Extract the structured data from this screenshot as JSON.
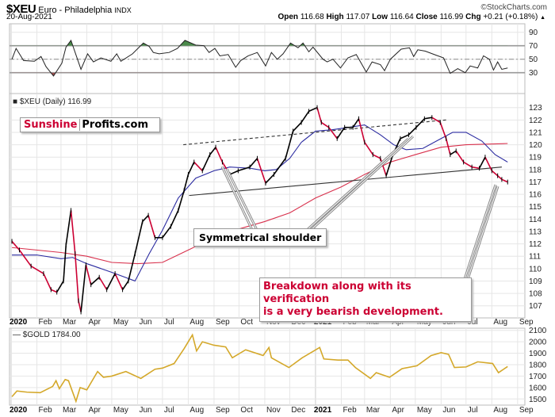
{
  "header": {
    "symbol": "$XEU",
    "name": "Euro - Philadelphia",
    "exchange": "INDX",
    "date": "20-Aug-2021",
    "credit": "©StockCharts.com",
    "open_label": "Open",
    "open": "116.68",
    "high_label": "High",
    "high": "117.07",
    "low_label": "Low",
    "low": "116.64",
    "close_label": "Close",
    "close": "116.99",
    "chg_label": "Chg",
    "chg": "+0.21 (+0.18%)",
    "chg_icon": "triangle-up-icon"
  },
  "branding": {
    "part1": "Sunshine",
    "part2": "Profits.com"
  },
  "annotations": {
    "shoulder": "Symmetrical shoulder",
    "breakdown_line1": "Breakdown along with its verification",
    "breakdown_line2": "is a very bearish development."
  },
  "colors": {
    "up": "#000000",
    "down": "#cc0033",
    "ma50": "#2a2aa0",
    "ma200": "#d8304c",
    "gold": "#d4a82a",
    "rsi_over": "#4a8a4a",
    "rsi_under": "#a05050",
    "accent": "#cc0033"
  },
  "chart_data": [
    {
      "type": "line",
      "panel": "rsi",
      "ylim": [
        10,
        100
      ],
      "yticks": [
        30,
        50,
        70,
        90
      ],
      "levels": [
        30,
        50,
        70
      ],
      "grid": true,
      "points": [
        [
          "2020-01-02",
          50
        ],
        [
          "2020-01-07",
          66
        ],
        [
          "2020-01-16",
          48
        ],
        [
          "2020-01-29",
          47
        ],
        [
          "2020-02-06",
          54
        ],
        [
          "2020-02-12",
          39
        ],
        [
          "2020-02-21",
          25
        ],
        [
          "2020-03-02",
          44
        ],
        [
          "2020-03-07",
          68
        ],
        [
          "2020-03-13",
          78
        ],
        [
          "2020-03-25",
          35
        ],
        [
          "2020-04-02",
          58
        ],
        [
          "2020-04-09",
          46
        ],
        [
          "2020-04-18",
          52
        ],
        [
          "2020-04-30",
          47
        ],
        [
          "2020-05-07",
          58
        ],
        [
          "2020-05-12",
          47
        ],
        [
          "2020-05-26",
          58
        ],
        [
          "2020-06-08",
          74
        ],
        [
          "2020-06-15",
          69
        ],
        [
          "2020-06-20",
          60
        ],
        [
          "2020-06-27",
          58
        ],
        [
          "2020-07-09",
          60
        ],
        [
          "2020-07-19",
          66
        ],
        [
          "2020-07-28",
          78
        ],
        [
          "2020-08-10",
          71
        ],
        [
          "2020-08-20",
          70
        ],
        [
          "2020-08-26",
          60
        ],
        [
          "2020-09-02",
          66
        ],
        [
          "2020-09-08",
          55
        ],
        [
          "2020-09-18",
          57
        ],
        [
          "2020-09-27",
          38
        ],
        [
          "2020-10-03",
          48
        ],
        [
          "2020-10-12",
          55
        ],
        [
          "2020-10-23",
          60
        ],
        [
          "2020-11-02",
          40
        ],
        [
          "2020-11-09",
          60
        ],
        [
          "2020-11-16",
          50
        ],
        [
          "2020-11-23",
          58
        ],
        [
          "2020-12-02",
          74
        ],
        [
          "2020-12-11",
          67
        ],
        [
          "2020-12-17",
          74
        ],
        [
          "2020-12-24",
          61
        ],
        [
          "2020-12-29",
          68
        ],
        [
          "2021-01-10",
          50
        ],
        [
          "2021-01-15",
          46
        ],
        [
          "2021-01-22",
          50
        ],
        [
          "2021-01-31",
          37
        ],
        [
          "2021-02-09",
          52
        ],
        [
          "2021-02-19",
          57
        ],
        [
          "2021-03-03",
          31
        ],
        [
          "2021-03-10",
          46
        ],
        [
          "2021-03-20",
          42
        ],
        [
          "2021-03-25",
          33
        ],
        [
          "2021-04-01",
          50
        ],
        [
          "2021-04-14",
          65
        ],
        [
          "2021-04-24",
          67
        ],
        [
          "2021-04-29",
          54
        ],
        [
          "2021-05-04",
          64
        ],
        [
          "2021-05-13",
          62
        ],
        [
          "2021-05-26",
          56
        ],
        [
          "2021-06-04",
          52
        ],
        [
          "2021-06-12",
          29
        ],
        [
          "2021-06-21",
          36
        ],
        [
          "2021-06-30",
          30
        ],
        [
          "2021-07-06",
          40
        ],
        [
          "2021-07-15",
          37
        ],
        [
          "2021-07-22",
          55
        ],
        [
          "2021-07-29",
          50
        ],
        [
          "2021-08-03",
          34
        ],
        [
          "2021-08-08",
          46
        ],
        [
          "2021-08-13",
          35
        ],
        [
          "2021-08-20",
          37
        ]
      ]
    },
    {
      "type": "line",
      "panel": "price",
      "legend": "$XEU (Daily) 116.99",
      "ylim": [
        106,
        123.8
      ],
      "yticks": [
        107,
        108,
        109,
        110,
        111,
        112,
        113,
        114,
        115,
        116,
        117,
        118,
        119,
        120,
        121,
        122,
        123
      ],
      "grid": true,
      "x_tick_labels": [
        "2020",
        "Feb",
        "Mar",
        "Apr",
        "May",
        "Jun",
        "Jul",
        "Aug",
        "Sep",
        "Oct",
        "Nov",
        "Dec",
        "2021",
        "Feb",
        "Mar",
        "Apr",
        "May",
        "Jun",
        "Jul",
        "Aug",
        "Sep"
      ],
      "price": [
        [
          "2020-01-02",
          112.2
        ],
        [
          "2020-01-11",
          111.5
        ],
        [
          "2020-01-25",
          110.2
        ],
        [
          "2020-02-09",
          109.6
        ],
        [
          "2020-02-18",
          108.3
        ],
        [
          "2020-02-25",
          108.1
        ],
        [
          "2020-03-04",
          109.0
        ],
        [
          "2020-03-07",
          111.9
        ],
        [
          "2020-03-13",
          114.7
        ],
        [
          "2020-03-18",
          111.2
        ],
        [
          "2020-03-22",
          107.4
        ],
        [
          "2020-03-25",
          106.5
        ],
        [
          "2020-03-31",
          110.3
        ],
        [
          "2020-04-06",
          108.7
        ],
        [
          "2020-04-16",
          109.3
        ],
        [
          "2020-04-25",
          108.3
        ],
        [
          "2020-05-05",
          109.6
        ],
        [
          "2020-05-14",
          108.3
        ],
        [
          "2020-05-21",
          109.0
        ],
        [
          "2020-05-29",
          111.2
        ],
        [
          "2020-06-07",
          113.8
        ],
        [
          "2020-06-14",
          114.3
        ],
        [
          "2020-06-22",
          112.5
        ],
        [
          "2020-07-01",
          112.5
        ],
        [
          "2020-07-11",
          113.4
        ],
        [
          "2020-07-20",
          114.7
        ],
        [
          "2020-07-27",
          116.3
        ],
        [
          "2020-08-01",
          117.6
        ],
        [
          "2020-08-08",
          118.6
        ],
        [
          "2020-08-18",
          117.9
        ],
        [
          "2020-08-27",
          119.2
        ],
        [
          "2020-09-03",
          119.8
        ],
        [
          "2020-09-11",
          118.6
        ],
        [
          "2020-09-20",
          117.6
        ],
        [
          "2020-09-30",
          117.9
        ],
        [
          "2020-10-14",
          118.2
        ],
        [
          "2020-10-23",
          118.9
        ],
        [
          "2020-11-02",
          116.9
        ],
        [
          "2020-11-12",
          117.6
        ],
        [
          "2020-11-26",
          118.9
        ],
        [
          "2020-12-05",
          121.1
        ],
        [
          "2020-12-15",
          121.8
        ],
        [
          "2020-12-24",
          122.7
        ],
        [
          "2021-01-03",
          123.0
        ],
        [
          "2021-01-08",
          121.8
        ],
        [
          "2021-01-17",
          121.4
        ],
        [
          "2021-01-27",
          120.5
        ],
        [
          "2021-02-05",
          121.4
        ],
        [
          "2021-02-15",
          121.4
        ],
        [
          "2021-02-22",
          122.1
        ],
        [
          "2021-03-01",
          120.2
        ],
        [
          "2021-03-11",
          119.2
        ],
        [
          "2021-03-20",
          118.9
        ],
        [
          "2021-03-27",
          117.5
        ],
        [
          "2021-04-04",
          119.2
        ],
        [
          "2021-04-13",
          120.5
        ],
        [
          "2021-04-23",
          120.8
        ],
        [
          "2021-05-02",
          121.4
        ],
        [
          "2021-05-12",
          122.1
        ],
        [
          "2021-05-21",
          122.2
        ],
        [
          "2021-05-31",
          121.8
        ],
        [
          "2021-06-07",
          120.5
        ],
        [
          "2021-06-12",
          119.2
        ],
        [
          "2021-06-19",
          119.5
        ],
        [
          "2021-06-28",
          118.6
        ],
        [
          "2021-07-08",
          118.2
        ],
        [
          "2021-07-17",
          118.1
        ],
        [
          "2021-07-24",
          119.0
        ],
        [
          "2021-08-01",
          117.9
        ],
        [
          "2021-08-08",
          117.5
        ],
        [
          "2021-08-13",
          117.2
        ],
        [
          "2021-08-20",
          116.99
        ]
      ],
      "ma50": [
        [
          "2020-01-02",
          111.1
        ],
        [
          "2020-02-01",
          111.1
        ],
        [
          "2020-03-01",
          110.8
        ],
        [
          "2020-03-15",
          110.9
        ],
        [
          "2020-04-01",
          110.4
        ],
        [
          "2020-05-01",
          109.7
        ],
        [
          "2020-05-29",
          109.0
        ],
        [
          "2020-06-15",
          111.2
        ],
        [
          "2020-07-01",
          113.1
        ],
        [
          "2020-07-20",
          115.7
        ],
        [
          "2020-08-10",
          117.3
        ],
        [
          "2020-09-01",
          117.9
        ],
        [
          "2020-09-20",
          118.2
        ],
        [
          "2020-10-15",
          118.1
        ],
        [
          "2020-11-01",
          117.9
        ],
        [
          "2020-11-15",
          118.0
        ],
        [
          "2020-12-01",
          118.9
        ],
        [
          "2020-12-15",
          120.2
        ],
        [
          "2021-01-01",
          121.1
        ],
        [
          "2021-01-20",
          121.2
        ],
        [
          "2021-02-10",
          121.4
        ],
        [
          "2021-03-01",
          121.6
        ],
        [
          "2021-03-20",
          120.8
        ],
        [
          "2021-04-05",
          120.0
        ],
        [
          "2021-04-20",
          119.6
        ],
        [
          "2021-05-10",
          119.7
        ],
        [
          "2021-06-01",
          120.5
        ],
        [
          "2021-06-15",
          121.0
        ],
        [
          "2021-07-01",
          121.0
        ],
        [
          "2021-07-20",
          120.3
        ],
        [
          "2021-08-05",
          119.2
        ],
        [
          "2021-08-20",
          118.6
        ]
      ],
      "ma200": [
        [
          "2020-01-02",
          111.7
        ],
        [
          "2020-03-01",
          111.3
        ],
        [
          "2020-04-01",
          111.0
        ],
        [
          "2020-05-01",
          110.5
        ],
        [
          "2020-06-01",
          110.4
        ],
        [
          "2020-07-01",
          110.5
        ],
        [
          "2020-08-01",
          111.5
        ],
        [
          "2020-09-01",
          112.5
        ],
        [
          "2020-10-01",
          113.2
        ],
        [
          "2020-11-01",
          113.8
        ],
        [
          "2020-12-01",
          114.5
        ],
        [
          "2021-01-01",
          115.7
        ],
        [
          "2021-02-01",
          116.6
        ],
        [
          "2021-03-01",
          117.6
        ],
        [
          "2021-04-01",
          118.6
        ],
        [
          "2021-05-01",
          119.2
        ],
        [
          "2021-06-01",
          119.8
        ],
        [
          "2021-07-01",
          120.0
        ],
        [
          "2021-08-20",
          120.1
        ]
      ],
      "trendlines": [
        {
          "style": "dashed",
          "from": [
            "2020-07-26",
            120.0
          ],
          "to": [
            "2021-06-07",
            122.0
          ]
        },
        {
          "style": "solid",
          "from": [
            "2020-08-02",
            115.9
          ],
          "to": [
            "2021-08-13",
            118.2
          ]
        }
      ]
    },
    {
      "type": "line",
      "panel": "gold",
      "legend": "$GOLD 1784.00",
      "ylim": [
        1450,
        2130
      ],
      "yticks": [
        1500,
        1600,
        1700,
        1800,
        1900,
        2000,
        2100
      ],
      "grid": true,
      "points": [
        [
          "2020-01-02",
          1520
        ],
        [
          "2020-01-08",
          1570
        ],
        [
          "2020-01-20",
          1560
        ],
        [
          "2020-02-05",
          1555
        ],
        [
          "2020-02-20",
          1610
        ],
        [
          "2020-02-24",
          1660
        ],
        [
          "2020-02-28",
          1590
        ],
        [
          "2020-03-06",
          1670
        ],
        [
          "2020-03-10",
          1660
        ],
        [
          "2020-03-19",
          1480
        ],
        [
          "2020-03-24",
          1600
        ],
        [
          "2020-04-01",
          1580
        ],
        [
          "2020-04-14",
          1740
        ],
        [
          "2020-04-21",
          1690
        ],
        [
          "2020-05-01",
          1700
        ],
        [
          "2020-05-18",
          1740
        ],
        [
          "2020-06-05",
          1680
        ],
        [
          "2020-06-22",
          1760
        ],
        [
          "2020-07-01",
          1770
        ],
        [
          "2020-07-15",
          1810
        ],
        [
          "2020-07-27",
          1940
        ],
        [
          "2020-08-06",
          2060
        ],
        [
          "2020-08-11",
          1920
        ],
        [
          "2020-08-18",
          2000
        ],
        [
          "2020-09-01",
          1970
        ],
        [
          "2020-09-15",
          1955
        ],
        [
          "2020-09-23",
          1860
        ],
        [
          "2020-10-09",
          1930
        ],
        [
          "2020-10-30",
          1880
        ],
        [
          "2020-11-06",
          1950
        ],
        [
          "2020-11-09",
          1860
        ],
        [
          "2020-11-30",
          1775
        ],
        [
          "2020-12-16",
          1860
        ],
        [
          "2021-01-06",
          1950
        ],
        [
          "2021-01-11",
          1850
        ],
        [
          "2021-01-28",
          1840
        ],
        [
          "2021-02-09",
          1840
        ],
        [
          "2021-02-18",
          1775
        ],
        [
          "2021-03-08",
          1680
        ],
        [
          "2021-03-15",
          1730
        ],
        [
          "2021-03-31",
          1690
        ],
        [
          "2021-04-15",
          1765
        ],
        [
          "2021-05-03",
          1790
        ],
        [
          "2021-05-20",
          1880
        ],
        [
          "2021-06-01",
          1905
        ],
        [
          "2021-06-10",
          1890
        ],
        [
          "2021-06-17",
          1775
        ],
        [
          "2021-07-01",
          1780
        ],
        [
          "2021-07-15",
          1825
        ],
        [
          "2021-08-02",
          1810
        ],
        [
          "2021-08-09",
          1730
        ],
        [
          "2021-08-20",
          1784
        ]
      ]
    }
  ]
}
